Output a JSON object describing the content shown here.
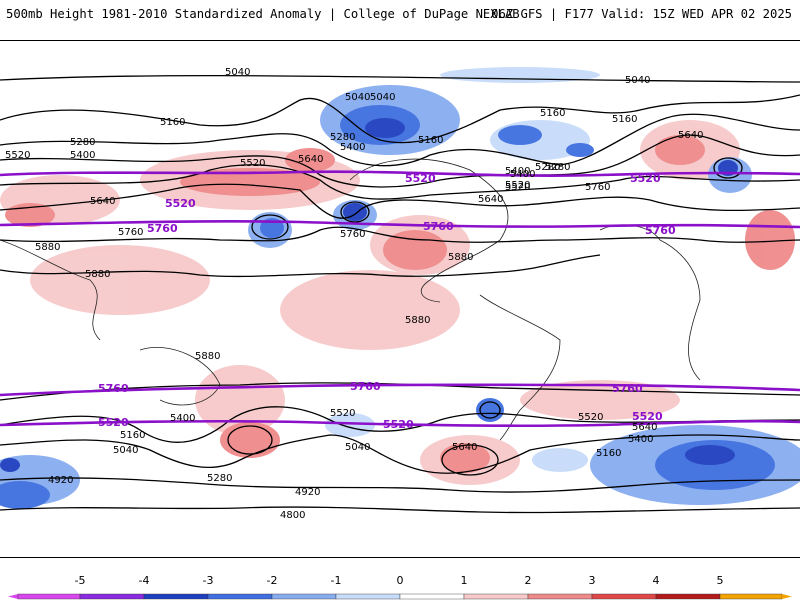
{
  "header": {
    "title_left": "500mb Height 1981-2010 Standardized Anomaly | College of DuPage NEXLAB",
    "title_right": "06Z GFS | F177 Valid: 15Z WED APR 02 2025"
  },
  "map": {
    "black_contour_labels": [
      "5040",
      "5040",
      "5040",
      "5160",
      "5160",
      "5160",
      "5280",
      "5280",
      "5280",
      "5400",
      "5400",
      "5400",
      "5520",
      "5520",
      "5520",
      "5640",
      "5640",
      "5640",
      "5760",
      "5760",
      "5880",
      "5880",
      "5880",
      "5880",
      "5880",
      "5040",
      "5160",
      "5280",
      "5400",
      "5520",
      "5640",
      "5760",
      "5400",
      "5520",
      "5160",
      "5040",
      "4920",
      "4920",
      "4800",
      "5280",
      "5640",
      "5040",
      "5160",
      "5400",
      "5520",
      "5640"
    ],
    "purple_contour_labels": [
      "5520",
      "5520",
      "5520",
      "5760",
      "5760",
      "5760",
      "5760",
      "5760",
      "5760",
      "5520",
      "5520",
      "5520"
    ]
  },
  "colorbar": {
    "ticks": [
      "-5",
      "-4",
      "-3",
      "-2",
      "-1",
      "0",
      "1",
      "2",
      "3",
      "4",
      "5"
    ],
    "colors": [
      "#d946ef",
      "#8a2be2",
      "#1e3fbf",
      "#3f6fe0",
      "#87acf0",
      "#c7dcfa",
      "#ffffff",
      "#f7c9c9",
      "#ef8a8a",
      "#e04848",
      "#b31b1b",
      "#f4a300"
    ]
  }
}
